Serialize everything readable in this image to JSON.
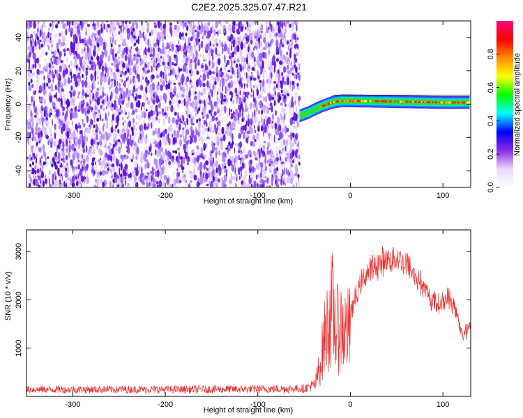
{
  "title": "C2E2.2025.325.07.47.R21",
  "chart_data": [
    {
      "type": "heatmap",
      "xlabel": "Height of straight line (km)",
      "ylabel": "Frequency (Hz)",
      "xlim": [
        -350,
        130
      ],
      "ylim": [
        -50,
        50
      ],
      "x_ticks": [
        "-300",
        "-200",
        "-100",
        "0",
        "100"
      ],
      "y_ticks": [
        "-40",
        "-20",
        "0",
        "20",
        "40"
      ],
      "colorbar": {
        "label": "Normalized spectral amplitude",
        "range": [
          0,
          1
        ],
        "ticks": [
          "0.0",
          "0.2",
          "0.4",
          "0.6",
          "0.8"
        ],
        "colormap": [
          "#ffffff",
          "#e8d8ff",
          "#8a2be2",
          "#0000ff",
          "#00ffff",
          "#00ff00",
          "#ffff00",
          "#ff8c00",
          "#ff0000",
          "#ff0080"
        ]
      },
      "noise_region_x": [
        -350,
        -55
      ],
      "signal_track": [
        {
          "x": -55,
          "y": -7
        },
        {
          "x": -45,
          "y": -5
        },
        {
          "x": -38,
          "y": -3
        },
        {
          "x": -30,
          "y": -1
        },
        {
          "x": -20,
          "y": 1
        },
        {
          "x": -10,
          "y": 2
        },
        {
          "x": 0,
          "y": 2
        },
        {
          "x": 50,
          "y": 1.5
        },
        {
          "x": 100,
          "y": 1
        },
        {
          "x": 130,
          "y": 1
        }
      ]
    },
    {
      "type": "line",
      "xlabel": "Height of straight line (km)",
      "ylabel": "SNR (10 * v/v)",
      "xlim": [
        -350,
        130
      ],
      "ylim": [
        0,
        3450
      ],
      "x_ticks": [
        "-300",
        "-200",
        "-100",
        "0",
        "100"
      ],
      "y_ticks": [
        "1000",
        "2000",
        "3000"
      ],
      "series": [
        {
          "color": "#ee3333",
          "envelope": [
            {
              "x": -350,
              "y": 180
            },
            {
              "x": -200,
              "y": 180
            },
            {
              "x": -100,
              "y": 190
            },
            {
              "x": -50,
              "y": 200
            },
            {
              "x": -38,
              "y": 300
            },
            {
              "x": -33,
              "y": 800
            },
            {
              "x": -28,
              "y": 1500
            },
            {
              "x": -23,
              "y": 2000
            },
            {
              "x": -20,
              "y": 2300
            },
            {
              "x": -15,
              "y": 1700
            },
            {
              "x": -10,
              "y": 1800
            },
            {
              "x": -5,
              "y": 1700
            },
            {
              "x": 0,
              "y": 1700
            },
            {
              "x": 10,
              "y": 2300
            },
            {
              "x": 20,
              "y": 2600
            },
            {
              "x": 35,
              "y": 2800
            },
            {
              "x": 50,
              "y": 2850
            },
            {
              "x": 60,
              "y": 2750
            },
            {
              "x": 75,
              "y": 2400
            },
            {
              "x": 85,
              "y": 2050
            },
            {
              "x": 95,
              "y": 1900
            },
            {
              "x": 105,
              "y": 2050
            },
            {
              "x": 112,
              "y": 1900
            },
            {
              "x": 118,
              "y": 1450
            },
            {
              "x": 123,
              "y": 1250
            },
            {
              "x": 130,
              "y": 1550
            }
          ]
        }
      ]
    }
  ]
}
